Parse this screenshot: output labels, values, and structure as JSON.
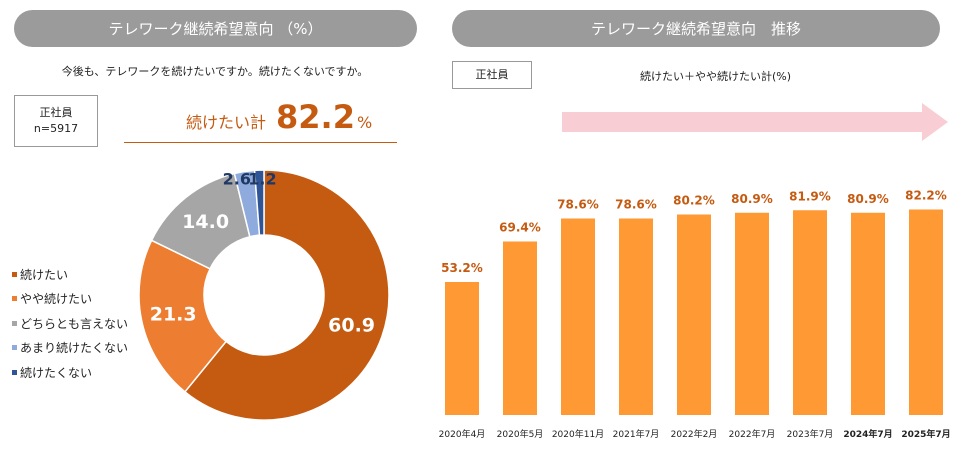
{
  "left": {
    "title": "テレワーク継続希望意向 （%）",
    "question": "今後も、テレワークを続けたいですか。続けたくないですか。",
    "group": "正社員",
    "n": "n=5917",
    "total_label": "続けたい計",
    "total_value": "82.2",
    "total_unit": "%"
  },
  "right": {
    "title": "テレワーク継続希望意向　推移",
    "group": "正社員",
    "subtitle": "続けたい＋やや続けたい計(%)"
  },
  "colors": {
    "accent": "#c55a11",
    "bar": "#ff9933",
    "arrow": "#f8cdd3"
  },
  "chart_data": [
    {
      "type": "pie",
      "variant": "donut",
      "title": "テレワーク継続希望意向 （%）",
      "categories": [
        "続けたい",
        "やや続けたい",
        "どちらとも言えない",
        "あまり続けたくない",
        "続けたくない"
      ],
      "values": [
        60.9,
        21.3,
        14.0,
        2.6,
        1.2
      ],
      "labels": [
        "60.9",
        "21.3",
        "14.0",
        "2.6",
        "1.2"
      ],
      "colors": [
        "#c55a11",
        "#ed7d31",
        "#a6a6a6",
        "#8faadc",
        "#2f5597"
      ],
      "legend": "left"
    },
    {
      "type": "bar",
      "title": "テレワーク継続希望意向　推移",
      "categories": [
        "2020年4月",
        "2020年5月",
        "2020年11月",
        "2021年7月",
        "2022年2月",
        "2022年7月",
        "2023年7月",
        "2024年7月",
        "2025年7月"
      ],
      "bold_categories": [
        "2024年7月",
        "2025年7月"
      ],
      "values": [
        53.2,
        69.4,
        78.6,
        78.6,
        80.2,
        80.9,
        81.9,
        80.9,
        82.2
      ],
      "labels": [
        "53.2%",
        "69.4%",
        "78.6%",
        "78.6%",
        "80.2%",
        "80.9%",
        "81.9%",
        "80.9%",
        "82.2%"
      ],
      "ylim": [
        0,
        100
      ],
      "grid": false
    }
  ]
}
